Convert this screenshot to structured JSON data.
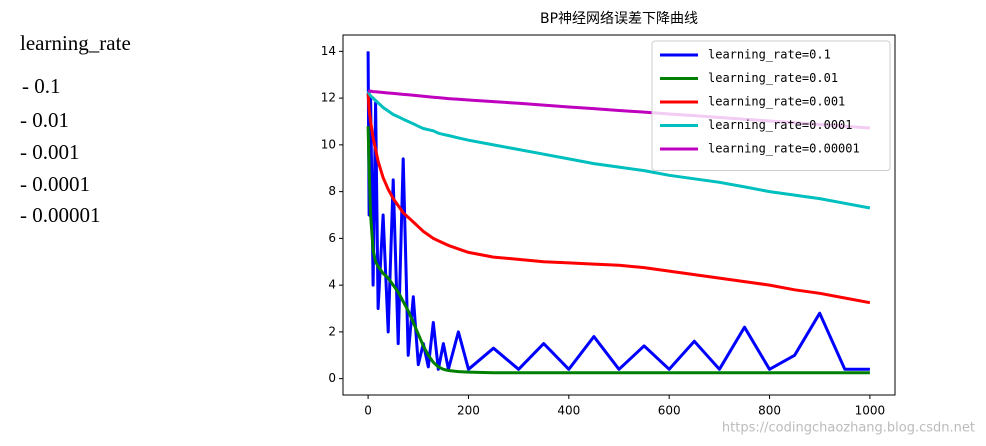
{
  "notes": {
    "heading": "learning_rate",
    "items": [
      "- 0.1",
      "- 0.01",
      "- 0.001",
      "- 0.0001",
      "- 0.00001"
    ]
  },
  "watermark": "https://codingchaozhang.blog.csdn.net",
  "chart_data": {
    "type": "line",
    "title": "BP神经网络误差下降曲线",
    "x": [
      0,
      2,
      5,
      10,
      15,
      20,
      30,
      40,
      50,
      60,
      70,
      80,
      90,
      100,
      110,
      120,
      130,
      140,
      150,
      160,
      180,
      200,
      250,
      300,
      350,
      400,
      450,
      500,
      550,
      600,
      650,
      700,
      750,
      800,
      850,
      900,
      950,
      1000
    ],
    "series": [
      {
        "name": "learning_rate=0.1",
        "color": "#0000ff",
        "values": [
          14,
          7,
          12,
          4,
          11.8,
          3,
          7,
          2,
          8.5,
          1.5,
          9.4,
          1,
          3.5,
          0.6,
          1.5,
          0.5,
          2.4,
          0.4,
          1.5,
          0.4,
          2,
          0.4,
          1.3,
          0.4,
          1.5,
          0.4,
          1.8,
          0.4,
          1.4,
          0.4,
          1.6,
          0.4,
          2.2,
          0.4,
          1.0,
          2.8,
          0.4,
          0.4
        ]
      },
      {
        "name": "learning_rate=0.01",
        "color": "#008000",
        "values": [
          10.8,
          9,
          7,
          5.5,
          5,
          4.8,
          4.5,
          4.3,
          4.0,
          3.7,
          3.3,
          2.9,
          2.4,
          1.9,
          1.4,
          1.0,
          0.7,
          0.5,
          0.4,
          0.35,
          0.3,
          0.28,
          0.25,
          0.25,
          0.25,
          0.25,
          0.25,
          0.25,
          0.25,
          0.25,
          0.25,
          0.25,
          0.25,
          0.25,
          0.25,
          0.25,
          0.25,
          0.25
        ]
      },
      {
        "name": "learning_rate=0.001",
        "color": "#ff0000",
        "values": [
          12.2,
          11.5,
          11,
          10.3,
          9.8,
          9.3,
          8.6,
          8.1,
          7.7,
          7.4,
          7.1,
          6.9,
          6.7,
          6.5,
          6.3,
          6.15,
          6.0,
          5.9,
          5.8,
          5.7,
          5.55,
          5.4,
          5.2,
          5.1,
          5.0,
          4.95,
          4.9,
          4.85,
          4.75,
          4.6,
          4.45,
          4.3,
          4.15,
          4.0,
          3.8,
          3.65,
          3.45,
          3.25
        ]
      },
      {
        "name": "learning_rate=0.0001",
        "color": "#00bfbf",
        "values": [
          12.3,
          12.2,
          12.1,
          12.0,
          11.9,
          11.8,
          11.6,
          11.45,
          11.3,
          11.2,
          11.1,
          11.0,
          10.9,
          10.8,
          10.7,
          10.65,
          10.6,
          10.5,
          10.45,
          10.4,
          10.3,
          10.2,
          10.0,
          9.8,
          9.6,
          9.4,
          9.2,
          9.05,
          8.9,
          8.7,
          8.55,
          8.4,
          8.2,
          8.0,
          7.85,
          7.7,
          7.5,
          7.3
        ]
      },
      {
        "name": "learning_rate=0.00001",
        "color": "#bf00bf",
        "values": [
          12.3,
          12.3,
          12.3,
          12.28,
          12.27,
          12.26,
          12.24,
          12.22,
          12.2,
          12.18,
          12.16,
          12.14,
          12.12,
          12.1,
          12.08,
          12.06,
          12.04,
          12.02,
          12.0,
          11.98,
          11.95,
          11.92,
          11.85,
          11.78,
          11.7,
          11.62,
          11.55,
          11.47,
          11.4,
          11.32,
          11.25,
          11.17,
          11.1,
          11.02,
          10.95,
          10.87,
          10.8,
          10.72
        ]
      }
    ],
    "xlim": [
      -50,
      1050
    ],
    "xticks": [
      0,
      200,
      400,
      600,
      800,
      1000
    ],
    "ylim": [
      -0.7,
      14.7
    ],
    "yticks": [
      0,
      2,
      4,
      6,
      8,
      10,
      12,
      14
    ],
    "legend": "upper right",
    "grid": false
  }
}
